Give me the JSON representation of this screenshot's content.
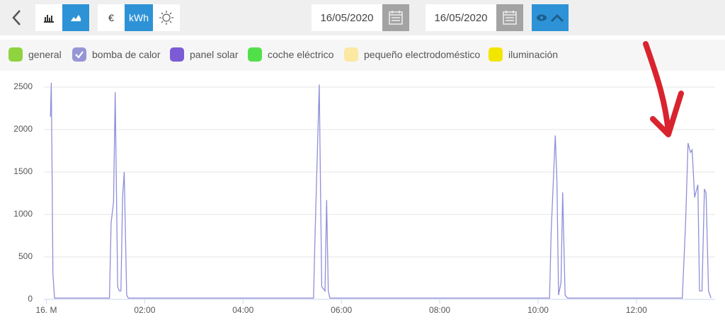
{
  "toolbar": {
    "currency": "€",
    "unit": "kWh",
    "date_from": "16/05/2020",
    "date_to": "16/05/2020"
  },
  "legend": [
    {
      "name": "general",
      "color": "#8fd33f",
      "checked": false
    },
    {
      "name": "bomba de calor",
      "color": "#9696d6",
      "checked": true
    },
    {
      "name": "panel solar",
      "color": "#7b5bd6",
      "checked": false
    },
    {
      "name": "coche eléctrico",
      "color": "#52e04a",
      "checked": false
    },
    {
      "name": "pequeño electrodoméstico",
      "color": "#fbe8a2",
      "checked": false
    },
    {
      "name": "iluminación",
      "color": "#f2e600",
      "checked": false
    }
  ],
  "chart_data": {
    "type": "line",
    "x": [
      5,
      6,
      7,
      8,
      10,
      77,
      79,
      82,
      84,
      87,
      89,
      91,
      93,
      95,
      98,
      100,
      326,
      328,
      333,
      336,
      340,
      342,
      344,
      346,
      614,
      616,
      621,
      623,
      625,
      628,
      630,
      633,
      636,
      776,
      780,
      783,
      786,
      788,
      791,
      795,
      797,
      800,
      803,
      805,
      808,
      811
    ],
    "series": [
      {
        "color": "#8f8fd8",
        "values": [
          2150,
          2550,
          1500,
          300,
          15,
          15,
          900,
          1150,
          2440,
          150,
          100,
          100,
          1200,
          1500,
          50,
          15,
          15,
          800,
          2530,
          150,
          100,
          1170,
          100,
          15,
          15,
          800,
          1930,
          1400,
          50,
          200,
          1260,
          50,
          15,
          15,
          900,
          1840,
          1730,
          1760,
          1200,
          1350,
          100,
          100,
          1300,
          1250,
          100,
          15
        ]
      }
    ],
    "xlim": [
      -3,
      816
    ],
    "ylim": [
      0,
      2500
    ],
    "xticks": [
      {
        "value": 0,
        "label": "16. M"
      },
      {
        "value": 120,
        "label": "02:00"
      },
      {
        "value": 240,
        "label": "04:00"
      },
      {
        "value": 360,
        "label": "06:00"
      },
      {
        "value": 480,
        "label": "08:00"
      },
      {
        "value": 600,
        "label": "10:00"
      },
      {
        "value": 720,
        "label": "12:00"
      }
    ],
    "yticks": [
      0,
      500,
      1000,
      1500,
      2000,
      2500
    ],
    "grid": true
  }
}
